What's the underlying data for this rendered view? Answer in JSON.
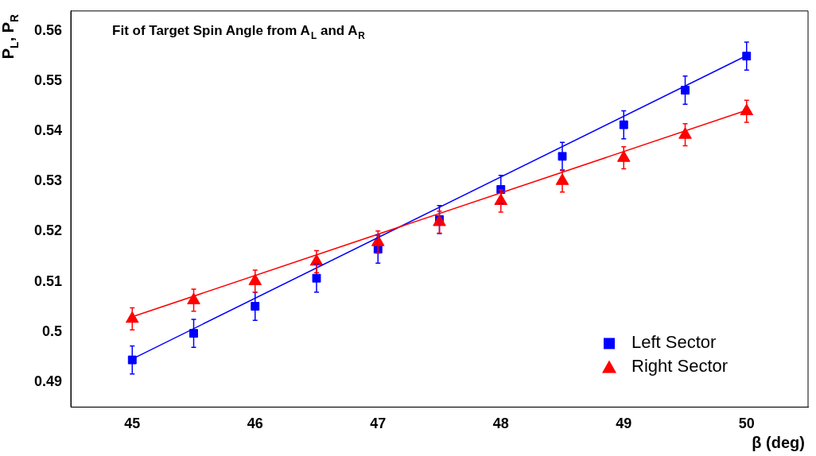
{
  "chart_data": {
    "type": "scatter",
    "title": "Fit of Target Spin Angle from A$_{L}$ and A$_{R}$",
    "xlabel": "β (deg)",
    "ylabel": "P$_{L}$, P$_{R}$",
    "xlim": [
      44.5,
      50.5
    ],
    "xticks": [
      45,
      46,
      47,
      48,
      49,
      50
    ],
    "ylim": [
      0.485,
      0.564
    ],
    "yticks": [
      0.49,
      0.5,
      0.51,
      0.52,
      0.53,
      0.54,
      0.55,
      0.56
    ],
    "legend": "bottom right",
    "grid": false,
    "series": [
      {
        "name": "Left Sector",
        "marker": "square",
        "color": "#0000ff",
        "x": [
          45,
          45.5,
          46,
          46.5,
          47,
          47.5,
          48,
          48.5,
          49,
          49.5,
          50
        ],
        "values": [
          0.4944,
          0.4997,
          0.5051,
          0.5107,
          0.5165,
          0.5224,
          0.5284,
          0.535,
          0.5413,
          0.5482,
          0.555
        ],
        "errors": [
          0.0028,
          0.0028,
          0.0028,
          0.0028,
          0.0028,
          0.0028,
          0.0028,
          0.0028,
          0.0028,
          0.0028,
          0.0028
        ]
      },
      {
        "name": "Right Sector",
        "marker": "triangle",
        "color": "#ff0000",
        "x": [
          45,
          45.5,
          46,
          46.5,
          47,
          47.5,
          48,
          48.5,
          49,
          49.5,
          50
        ],
        "values": [
          0.5026,
          0.5063,
          0.5101,
          0.514,
          0.5179,
          0.5219,
          0.5261,
          0.5301,
          0.5347,
          0.5393,
          0.544
        ],
        "errors": [
          0.0022,
          0.0022,
          0.0022,
          0.0022,
          0.0022,
          0.0022,
          0.0022,
          0.0022,
          0.0022,
          0.0022,
          0.0022
        ]
      },
      {
        "type": "line",
        "marker": "none",
        "color": "#0000ff",
        "x": [
          45,
          50
        ],
        "values": [
          0.4946,
          0.5551
        ]
      },
      {
        "type": "line",
        "marker": "none",
        "color": "#ff0000",
        "x": [
          45,
          50
        ],
        "values": [
          0.503,
          0.5442
        ]
      }
    ]
  }
}
